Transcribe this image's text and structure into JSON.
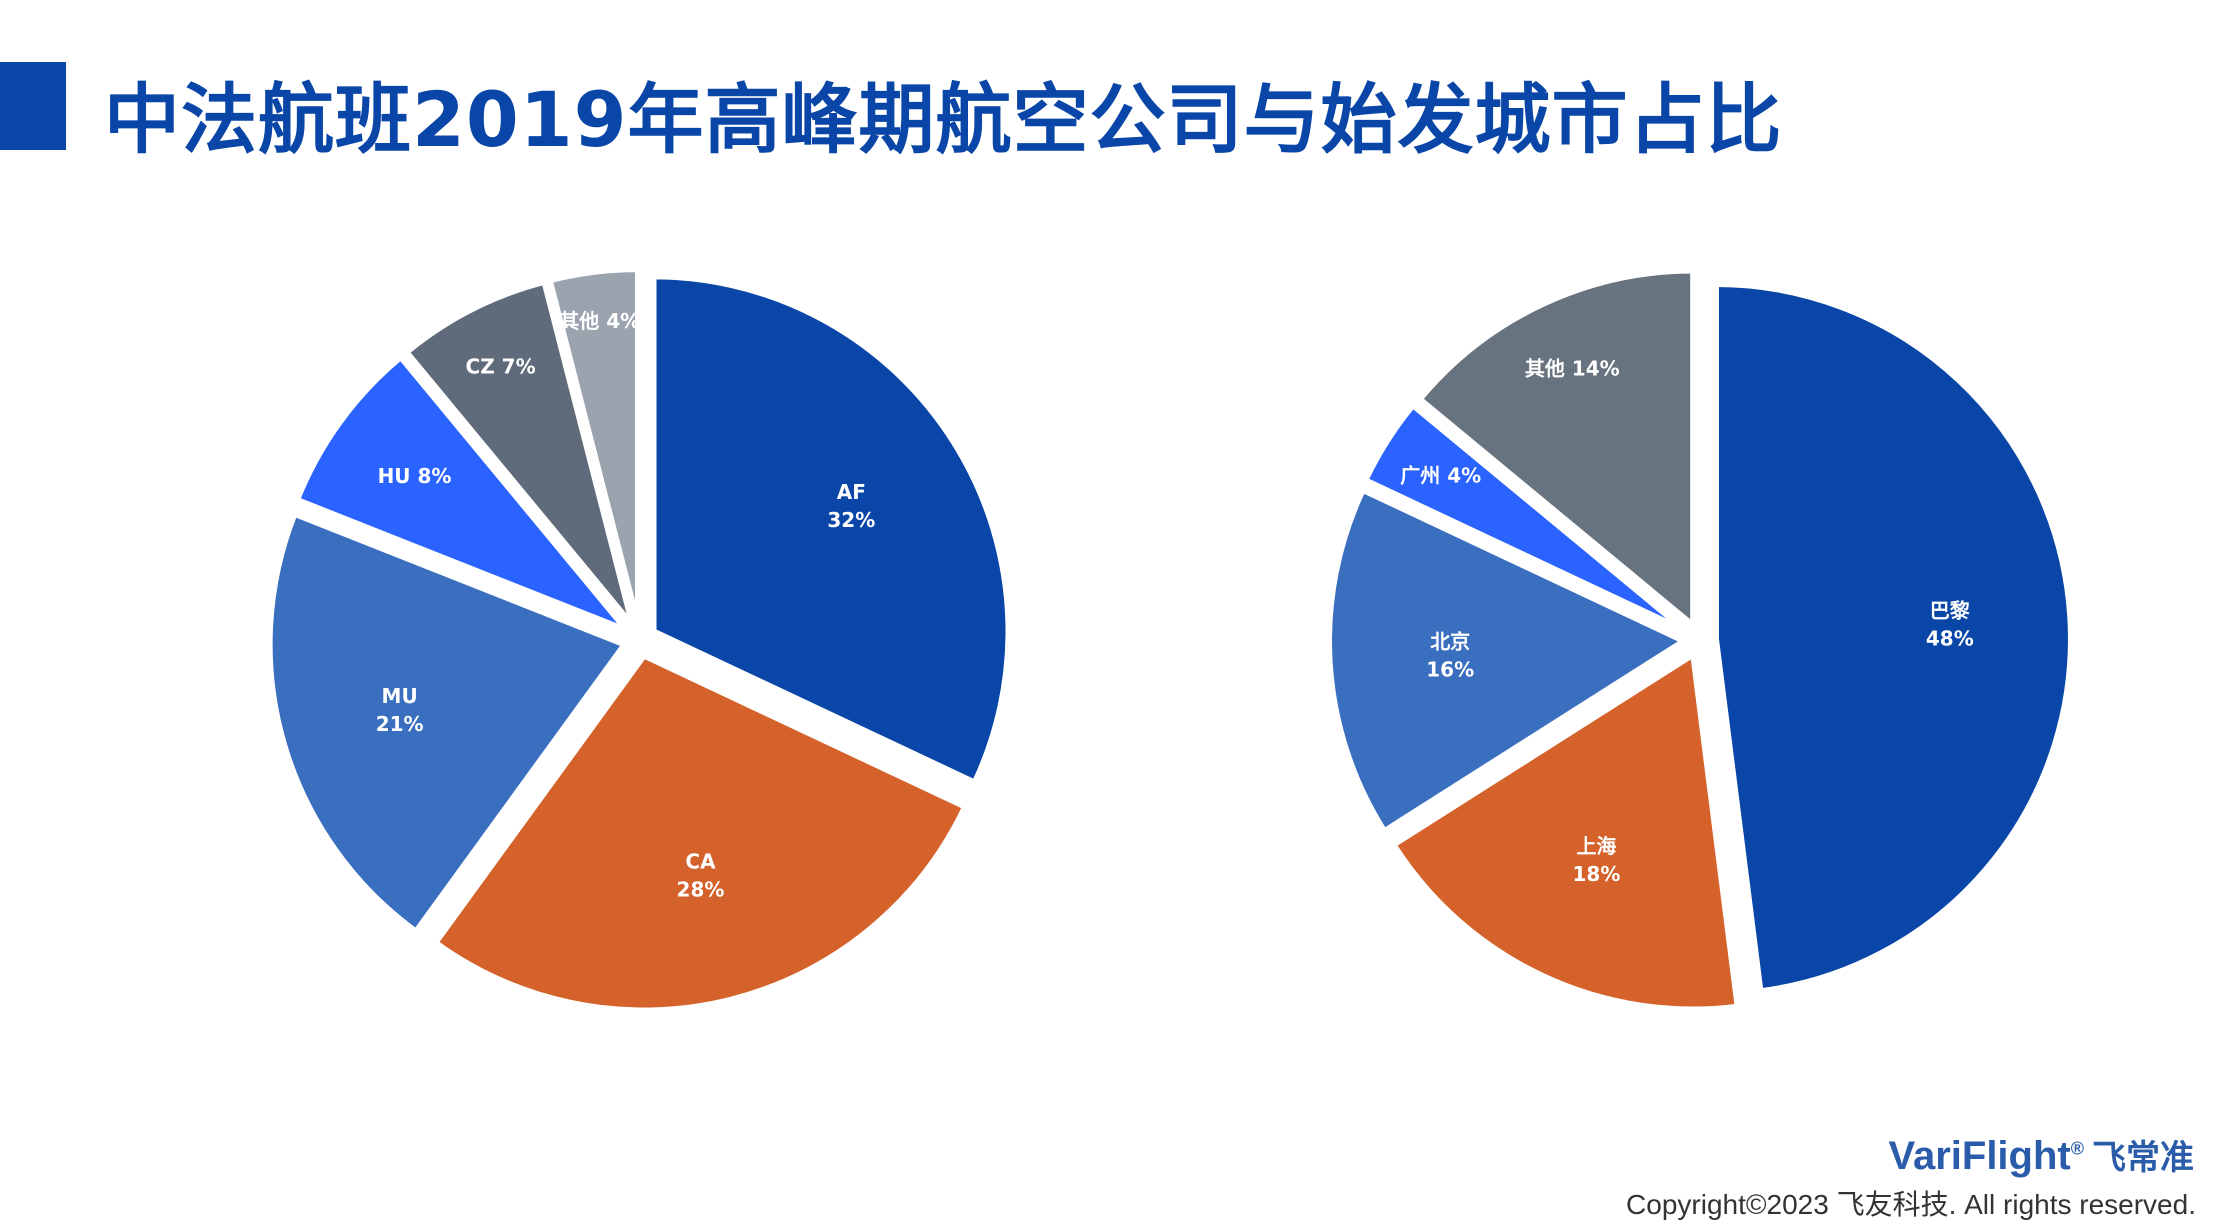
{
  "header": {
    "title": "中法航班2019年高峰期航空公司与始发城市占比"
  },
  "chart_data": [
    {
      "type": "pie",
      "categories": [
        "AF",
        "CA",
        "MU",
        "HU",
        "CZ",
        "其他"
      ],
      "values": [
        32,
        28,
        21,
        8,
        7,
        4
      ],
      "labels": [
        "AF\n32%",
        "CA\n28%",
        "MU\n21%",
        "HU 8%",
        "CZ 7%",
        "其他 4%"
      ],
      "colors": [
        "#0a46a8",
        "#d4622a",
        "#3a6fc0",
        "#2a63ff",
        "#5f6b7a",
        "#9aa3ae"
      ]
    },
    {
      "type": "pie",
      "categories": [
        "巴黎",
        "上海",
        "北京",
        "广州",
        "其他"
      ],
      "values": [
        48,
        18,
        16,
        4,
        14
      ],
      "labels": [
        "巴黎\n48%",
        "上海\n18%",
        "北京\n16%",
        "广州 4%",
        "其他 14%"
      ],
      "colors": [
        "#0a46a8",
        "#d4622a",
        "#3a6fc0",
        "#2a63ff",
        "#67737f"
      ]
    }
  ],
  "footer": {
    "brand_en": "VariFlight",
    "brand_reg": "®",
    "brand_cn": "飞常准",
    "copyright": "Copyright©2023 飞友科技. All rights reserved."
  }
}
